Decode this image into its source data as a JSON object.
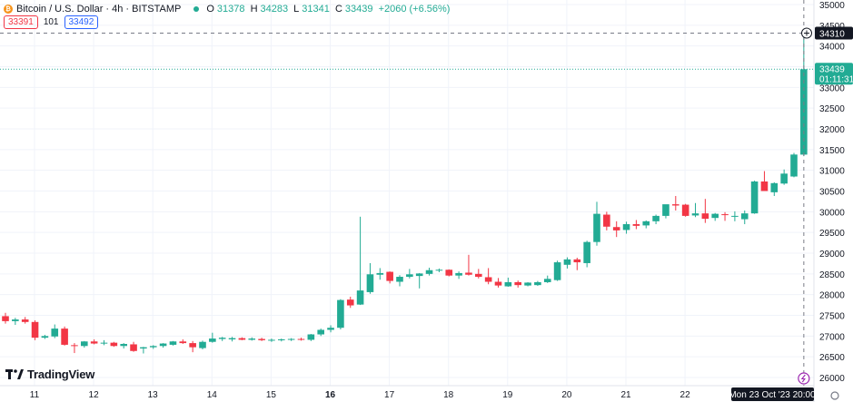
{
  "header": {
    "symbol": "Bitcoin / U.S. Dollar · 4h · BITSTAMP",
    "ohlc": {
      "o_label": "O",
      "o": "31378",
      "h_label": "H",
      "h": "34283",
      "l_label": "L",
      "l": "31341",
      "c_label": "C",
      "c": "33439",
      "change": "+2060 (+6.56%)"
    },
    "sell": "33391",
    "spread": "101",
    "buy": "33492"
  },
  "crosshair": {
    "price": "34310",
    "time": "Mon 23 Oct '23   20:00"
  },
  "last_price": {
    "price": "33439",
    "countdown": "01:11:31"
  },
  "logo": "TradingView",
  "colors": {
    "up": "#22ab94",
    "down": "#f23645",
    "grid": "#f0f3fa",
    "text": "#131722"
  },
  "chart_data": {
    "type": "candlestick",
    "title": "Bitcoin / U.S. Dollar · 4h · BITSTAMP",
    "x_ticks": [
      "11",
      "12",
      "13",
      "14",
      "15",
      "16",
      "17",
      "18",
      "19",
      "20",
      "21",
      "22"
    ],
    "y_ticks": [
      26000,
      26500,
      27000,
      27500,
      28000,
      28500,
      29000,
      29500,
      30000,
      30500,
      31000,
      31500,
      32000,
      32500,
      33000,
      33500,
      34000,
      34500,
      35000
    ],
    "ylim": [
      25950,
      35050
    ],
    "grid": true,
    "candles": [
      {
        "o": 27480,
        "h": 27560,
        "l": 27300,
        "c": 27360
      },
      {
        "o": 27360,
        "h": 27440,
        "l": 27270,
        "c": 27400
      },
      {
        "o": 27400,
        "h": 27460,
        "l": 27300,
        "c": 27340
      },
      {
        "o": 27340,
        "h": 27380,
        "l": 26900,
        "c": 26960
      },
      {
        "o": 26960,
        "h": 27030,
        "l": 26930,
        "c": 27000
      },
      {
        "o": 26990,
        "h": 27280,
        "l": 26950,
        "c": 27180
      },
      {
        "o": 27180,
        "h": 27230,
        "l": 26770,
        "c": 26790
      },
      {
        "o": 26780,
        "h": 26830,
        "l": 26590,
        "c": 26760
      },
      {
        "o": 26760,
        "h": 26880,
        "l": 26720,
        "c": 26870
      },
      {
        "o": 26870,
        "h": 26920,
        "l": 26800,
        "c": 26820
      },
      {
        "o": 26820,
        "h": 26900,
        "l": 26780,
        "c": 26840
      },
      {
        "o": 26840,
        "h": 26860,
        "l": 26740,
        "c": 26760
      },
      {
        "o": 26760,
        "h": 26830,
        "l": 26700,
        "c": 26810
      },
      {
        "o": 26800,
        "h": 26860,
        "l": 26620,
        "c": 26640
      },
      {
        "o": 26700,
        "h": 26740,
        "l": 26580,
        "c": 26730
      },
      {
        "o": 26730,
        "h": 26780,
        "l": 26690,
        "c": 26760
      },
      {
        "o": 26760,
        "h": 26830,
        "l": 26720,
        "c": 26820
      },
      {
        "o": 26790,
        "h": 26880,
        "l": 26770,
        "c": 26870
      },
      {
        "o": 26870,
        "h": 26920,
        "l": 26810,
        "c": 26830
      },
      {
        "o": 26830,
        "h": 26880,
        "l": 26610,
        "c": 26730
      },
      {
        "o": 26710,
        "h": 26890,
        "l": 26680,
        "c": 26860
      },
      {
        "o": 26860,
        "h": 27080,
        "l": 26840,
        "c": 26940
      },
      {
        "o": 26930,
        "h": 26980,
        "l": 26880,
        "c": 26960
      },
      {
        "o": 26920,
        "h": 26980,
        "l": 26870,
        "c": 26950
      },
      {
        "o": 26950,
        "h": 26970,
        "l": 26900,
        "c": 26910
      },
      {
        "o": 26910,
        "h": 26970,
        "l": 26890,
        "c": 26940
      },
      {
        "o": 26930,
        "h": 26960,
        "l": 26880,
        "c": 26900
      },
      {
        "o": 26900,
        "h": 26940,
        "l": 26860,
        "c": 26910
      },
      {
        "o": 26910,
        "h": 26940,
        "l": 26870,
        "c": 26920
      },
      {
        "o": 26910,
        "h": 26950,
        "l": 26880,
        "c": 26930
      },
      {
        "o": 26930,
        "h": 26960,
        "l": 26890,
        "c": 26910
      },
      {
        "o": 26910,
        "h": 27050,
        "l": 26880,
        "c": 27040
      },
      {
        "o": 27040,
        "h": 27180,
        "l": 27000,
        "c": 27150
      },
      {
        "o": 27150,
        "h": 27260,
        "l": 27090,
        "c": 27200
      },
      {
        "o": 27200,
        "h": 27890,
        "l": 27160,
        "c": 27870
      },
      {
        "o": 27880,
        "h": 27950,
        "l": 27680,
        "c": 27740
      },
      {
        "o": 27760,
        "h": 29880,
        "l": 27750,
        "c": 28100
      },
      {
        "o": 28060,
        "h": 28760,
        "l": 28020,
        "c": 28490
      },
      {
        "o": 28480,
        "h": 28640,
        "l": 28360,
        "c": 28520
      },
      {
        "o": 28550,
        "h": 28560,
        "l": 28270,
        "c": 28330
      },
      {
        "o": 28310,
        "h": 28470,
        "l": 28200,
        "c": 28430
      },
      {
        "o": 28430,
        "h": 28620,
        "l": 28390,
        "c": 28490
      },
      {
        "o": 28450,
        "h": 28520,
        "l": 28150,
        "c": 28510
      },
      {
        "o": 28500,
        "h": 28650,
        "l": 28460,
        "c": 28590
      },
      {
        "o": 28590,
        "h": 28630,
        "l": 28540,
        "c": 28600
      },
      {
        "o": 28600,
        "h": 28610,
        "l": 28440,
        "c": 28460
      },
      {
        "o": 28460,
        "h": 28560,
        "l": 28380,
        "c": 28520
      },
      {
        "o": 28530,
        "h": 28960,
        "l": 28460,
        "c": 28480
      },
      {
        "o": 28500,
        "h": 28620,
        "l": 28390,
        "c": 28430
      },
      {
        "o": 28420,
        "h": 28640,
        "l": 28250,
        "c": 28310
      },
      {
        "o": 28310,
        "h": 28400,
        "l": 28170,
        "c": 28220
      },
      {
        "o": 28200,
        "h": 28410,
        "l": 28190,
        "c": 28300
      },
      {
        "o": 28300,
        "h": 28340,
        "l": 28170,
        "c": 28230
      },
      {
        "o": 28220,
        "h": 28300,
        "l": 28200,
        "c": 28290
      },
      {
        "o": 28230,
        "h": 28330,
        "l": 28210,
        "c": 28300
      },
      {
        "o": 28300,
        "h": 28460,
        "l": 28280,
        "c": 28380
      },
      {
        "o": 28350,
        "h": 28820,
        "l": 28330,
        "c": 28780
      },
      {
        "o": 28720,
        "h": 28900,
        "l": 28630,
        "c": 28850
      },
      {
        "o": 28850,
        "h": 28890,
        "l": 28590,
        "c": 28780
      },
      {
        "o": 28760,
        "h": 29300,
        "l": 28660,
        "c": 29270
      },
      {
        "o": 29270,
        "h": 30240,
        "l": 29180,
        "c": 29950
      },
      {
        "o": 29930,
        "h": 30000,
        "l": 29550,
        "c": 29640
      },
      {
        "o": 29630,
        "h": 29770,
        "l": 29390,
        "c": 29550
      },
      {
        "o": 29560,
        "h": 29760,
        "l": 29470,
        "c": 29700
      },
      {
        "o": 29700,
        "h": 29800,
        "l": 29580,
        "c": 29660
      },
      {
        "o": 29670,
        "h": 29790,
        "l": 29600,
        "c": 29770
      },
      {
        "o": 29770,
        "h": 29930,
        "l": 29700,
        "c": 29900
      },
      {
        "o": 29900,
        "h": 30130,
        "l": 29840,
        "c": 30180
      },
      {
        "o": 30180,
        "h": 30380,
        "l": 30030,
        "c": 30150
      },
      {
        "o": 30170,
        "h": 30190,
        "l": 29880,
        "c": 29900
      },
      {
        "o": 29910,
        "h": 30210,
        "l": 29870,
        "c": 29960
      },
      {
        "o": 29960,
        "h": 30310,
        "l": 29730,
        "c": 29830
      },
      {
        "o": 29850,
        "h": 29970,
        "l": 29780,
        "c": 29950
      },
      {
        "o": 29940,
        "h": 29990,
        "l": 29780,
        "c": 29920
      },
      {
        "o": 29900,
        "h": 30010,
        "l": 29770,
        "c": 29900
      },
      {
        "o": 29820,
        "h": 30030,
        "l": 29700,
        "c": 29960
      },
      {
        "o": 29960,
        "h": 30750,
        "l": 29950,
        "c": 30730
      },
      {
        "o": 30730,
        "h": 30980,
        "l": 30550,
        "c": 30500
      },
      {
        "o": 30470,
        "h": 30710,
        "l": 30380,
        "c": 30690
      },
      {
        "o": 30680,
        "h": 31020,
        "l": 30650,
        "c": 30920
      },
      {
        "o": 30850,
        "h": 31420,
        "l": 30830,
        "c": 31380
      },
      {
        "o": 31378,
        "h": 34283,
        "l": 31341,
        "c": 33439
      }
    ]
  }
}
